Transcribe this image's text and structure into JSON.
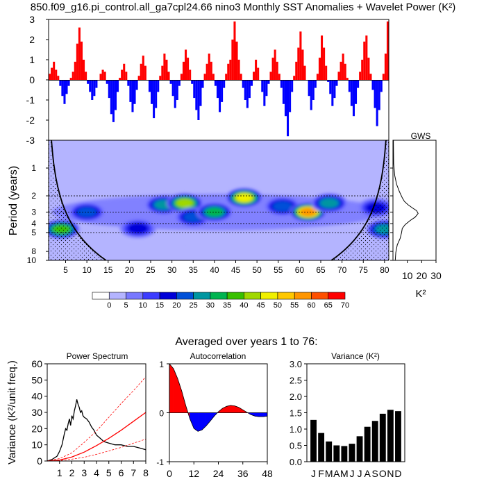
{
  "title": "850.f09_g16.pi_control.all_ga7cpl24.66 nino3 Monthly SST Anomalies + Wavelet Power (K²)",
  "chart_data": [
    {
      "id": "sst_anomalies",
      "type": "bar",
      "title": "",
      "xlim": [
        1,
        81
      ],
      "ylim": [
        -3,
        3
      ],
      "yticks": [
        3,
        2,
        1,
        0,
        -1,
        -2,
        -3
      ],
      "positive_color": "#ff0000",
      "negative_color": "#0000ff",
      "x_step_years": 0.0833,
      "values": [
        0.3,
        0.6,
        0.9,
        0.5,
        0.2,
        -0.3,
        -0.8,
        -1.2,
        -0.7,
        -0.3,
        0.1,
        0.4,
        0.9,
        1.8,
        2.6,
        1.9,
        1.0,
        0.4,
        -0.2,
        -0.6,
        -1.0,
        -0.8,
        -0.4,
        0.0,
        0.3,
        0.5,
        0.4,
        -0.2,
        -0.9,
        -1.7,
        -2.1,
        -1.5,
        -0.6,
        0.1,
        0.5,
        0.8,
        0.4,
        -0.3,
        -1.1,
        -1.6,
        -1.2,
        -0.5,
        0.2,
        0.8,
        1.2,
        0.7,
        0.0,
        -0.6,
        -1.2,
        -1.9,
        -1.4,
        -0.6,
        0.2,
        0.7,
        1.3,
        1.0,
        0.4,
        -0.2,
        -0.8,
        -1.4,
        -1.0,
        -0.3,
        0.3,
        0.9,
        1.5,
        1.1,
        0.5,
        -0.2,
        -0.9,
        -1.5,
        -2.0,
        -1.3,
        -0.4,
        0.3,
        0.8,
        1.3,
        0.9,
        0.3,
        -0.3,
        -0.9,
        -1.6,
        -1.1,
        -0.4,
        0.3,
        0.8,
        1.0,
        2.0,
        2.9,
        1.9,
        1.0,
        0.3,
        -0.4,
        -1.0,
        -1.4,
        -0.9,
        -0.3,
        0.4,
        1.0,
        0.6,
        0.0,
        -0.6,
        -1.3,
        -0.8,
        -0.2,
        0.4,
        1.1,
        1.5,
        0.9,
        0.3,
        -0.4,
        -1.2,
        -1.8,
        -2.8,
        -1.6,
        -0.6,
        0.2,
        0.9,
        1.6,
        2.4,
        1.5,
        0.7,
        0.0,
        -0.8,
        -1.5,
        -1.0,
        -0.4,
        0.3,
        1.1,
        2.2,
        1.6,
        0.7,
        -0.1,
        -0.7,
        -1.3,
        -0.9,
        -0.3,
        0.4,
        0.9,
        1.3,
        0.8,
        0.1,
        -0.6,
        -1.3,
        -1.8,
        -1.2,
        -0.4,
        0.4,
        1.0,
        1.9,
        2.2,
        1.1,
        0.3,
        -0.5,
        -1.4,
        -2.3,
        -1.5,
        -0.6,
        0.3,
        1.3,
        2.9
      ],
      "series": [
        {
          "name": "positive anomaly",
          "color": "#ff0000"
        },
        {
          "name": "negative anomaly",
          "color": "#0000ff"
        }
      ]
    },
    {
      "id": "wavelet_power",
      "type": "heatmap",
      "title": "",
      "ylabel": "Period (years)",
      "xlim": [
        1,
        81
      ],
      "ylim": [
        0.5,
        10
      ],
      "xticks": [
        5,
        10,
        15,
        20,
        25,
        30,
        35,
        40,
        45,
        50,
        55,
        60,
        65,
        70,
        75,
        80
      ],
      "yticks": [
        1,
        2,
        3,
        4,
        5,
        8,
        10
      ],
      "dashed_periods": [
        2,
        3,
        4,
        5
      ],
      "colorbar": {
        "labels": [
          "0",
          "5",
          "10",
          "15",
          "20",
          "25",
          "30",
          "35",
          "40",
          "45",
          "50",
          "55",
          "60",
          "65",
          "70"
        ],
        "colors": [
          "#ffffff",
          "#b4b4ff",
          "#7878ff",
          "#3c3cff",
          "#0000d8",
          "#0050d8",
          "#0096a0",
          "#00b450",
          "#38c000",
          "#a0d800",
          "#f0f000",
          "#ffc800",
          "#ff9600",
          "#ff5000",
          "#ff0000"
        ]
      },
      "hotspots": [
        {
          "x": 10,
          "period": 3.0,
          "power": 25
        },
        {
          "x": 4,
          "period": 4.6,
          "power": 40
        },
        {
          "x": 22,
          "period": 4.5,
          "power": 20
        },
        {
          "x": 28,
          "period": 2.5,
          "power": 30
        },
        {
          "x": 33,
          "period": 2.4,
          "power": 45
        },
        {
          "x": 35,
          "period": 3.4,
          "power": 25
        },
        {
          "x": 40,
          "period": 3.0,
          "power": 35
        },
        {
          "x": 47,
          "period": 2.1,
          "power": 50
        },
        {
          "x": 56,
          "period": 2.6,
          "power": 25
        },
        {
          "x": 62,
          "period": 3.0,
          "power": 60
        },
        {
          "x": 67,
          "period": 2.4,
          "power": 30
        },
        {
          "x": 78,
          "period": 2.7,
          "power": 20
        },
        {
          "x": 80,
          "period": 4.6,
          "power": 30
        }
      ]
    },
    {
      "id": "gws",
      "type": "line",
      "title": "GWS",
      "xlabel": "K²",
      "xlim": [
        0,
        30
      ],
      "xticks": [
        10,
        20,
        30
      ],
      "x": [
        0.3,
        0.5,
        1.2,
        2.5,
        4.5,
        6.5,
        8.0,
        10.5,
        13.5,
        16.5,
        17.5,
        15.5,
        12.0,
        8.5,
        6.5,
        6.0,
        5.0,
        3.0,
        2.0,
        1.6
      ],
      "y": [
        0.5,
        0.9,
        1.2,
        1.5,
        1.8,
        2.1,
        2.3,
        2.5,
        2.7,
        2.9,
        3.1,
        3.4,
        3.7,
        4.1,
        4.5,
        5.0,
        5.8,
        6.8,
        8.2,
        10
      ]
    },
    {
      "id": "power_spectrum",
      "type": "line",
      "title": "Power Spectrum",
      "ylabel": "Variance (K²/unit freq.)",
      "xlim": [
        0,
        8
      ],
      "ylim": [
        0,
        60
      ],
      "xticks": [
        1,
        2,
        3,
        4,
        5,
        6,
        7,
        8
      ],
      "yticks": [
        0,
        10,
        20,
        30,
        40,
        50,
        60
      ],
      "series": [
        {
          "name": "spectrum",
          "color": "#000000",
          "dash": "none",
          "x": [
            0,
            0.4,
            0.8,
            1.0,
            1.2,
            1.4,
            1.5,
            1.6,
            1.7,
            1.8,
            1.9,
            2.0,
            2.1,
            2.2,
            2.3,
            2.4,
            2.5,
            2.6,
            2.7,
            2.8,
            2.9,
            3.0,
            3.2,
            3.4,
            3.6,
            3.8,
            4.0,
            4.3,
            4.6,
            5.0,
            5.5,
            6.0,
            6.5,
            7.0,
            7.5,
            8.0
          ],
          "y": [
            0,
            1,
            3,
            6,
            10,
            17,
            20,
            19,
            23,
            26,
            22,
            28,
            26,
            31,
            34,
            38,
            35,
            33,
            30,
            31,
            28,
            27,
            26,
            24,
            21,
            19,
            16,
            14,
            12,
            11,
            10,
            10,
            9,
            9,
            8,
            7
          ]
        },
        {
          "name": "red-noise",
          "color": "#ff0000",
          "dash": "none",
          "x": [
            0,
            1,
            2,
            3,
            4,
            5,
            6,
            7,
            8
          ],
          "y": [
            0,
            0.6,
            2.5,
            5.5,
            9.5,
            14,
            19,
            24.5,
            30
          ]
        },
        {
          "name": "upper bound",
          "color": "#ff0000",
          "dash": "3,2",
          "x": [
            0,
            1,
            2,
            3,
            4,
            5,
            6,
            7,
            8
          ],
          "y": [
            0,
            1.5,
            5.0,
            11.5,
            18.5,
            27,
            35.5,
            43.5,
            52
          ]
        },
        {
          "name": "lower bound",
          "color": "#ff0000",
          "dash": "3,2",
          "x": [
            0,
            1,
            2,
            3,
            4,
            5,
            6,
            7,
            8
          ],
          "y": [
            0,
            0.3,
            1.1,
            2.3,
            4.1,
            6.2,
            8.4,
            11,
            13.5
          ]
        }
      ]
    },
    {
      "id": "autocorrelation",
      "type": "area",
      "title": "Autocorrelation",
      "xlim": [
        0,
        48
      ],
      "ylim": [
        -1,
        1
      ],
      "xticks": [
        0,
        12,
        24,
        36,
        48
      ],
      "yticks": [
        1,
        0,
        -1
      ],
      "positive_color": "#ff0000",
      "negative_color": "#0000ff",
      "x": [
        0,
        2,
        4,
        6,
        8,
        10,
        12,
        14,
        16,
        18,
        20,
        22,
        24,
        26,
        28,
        30,
        32,
        34,
        36,
        38,
        40,
        42,
        44,
        46,
        48
      ],
      "y": [
        1.0,
        0.9,
        0.7,
        0.45,
        0.15,
        -0.12,
        -0.32,
        -0.38,
        -0.35,
        -0.27,
        -0.17,
        -0.07,
        0.02,
        0.09,
        0.13,
        0.15,
        0.14,
        0.11,
        0.06,
        0.01,
        -0.04,
        -0.07,
        -0.08,
        -0.08,
        -0.07
      ]
    },
    {
      "id": "monthly_variance",
      "type": "bar",
      "title": "Variance (K²)",
      "categories": [
        "J",
        "F",
        "M",
        "A",
        "M",
        "J",
        "J",
        "A",
        "S",
        "O",
        "N",
        "D"
      ],
      "values": [
        1.28,
        0.88,
        0.62,
        0.5,
        0.48,
        0.55,
        0.78,
        1.07,
        1.25,
        1.47,
        1.59,
        1.55
      ],
      "ylim": [
        0,
        3
      ],
      "yticks": [
        "0.0",
        "0.5",
        "1.0",
        "1.5",
        "2.0",
        "2.5",
        "3.0"
      ],
      "color": "#000000"
    }
  ],
  "subtitle": "Averaged over years 1 to 76:"
}
